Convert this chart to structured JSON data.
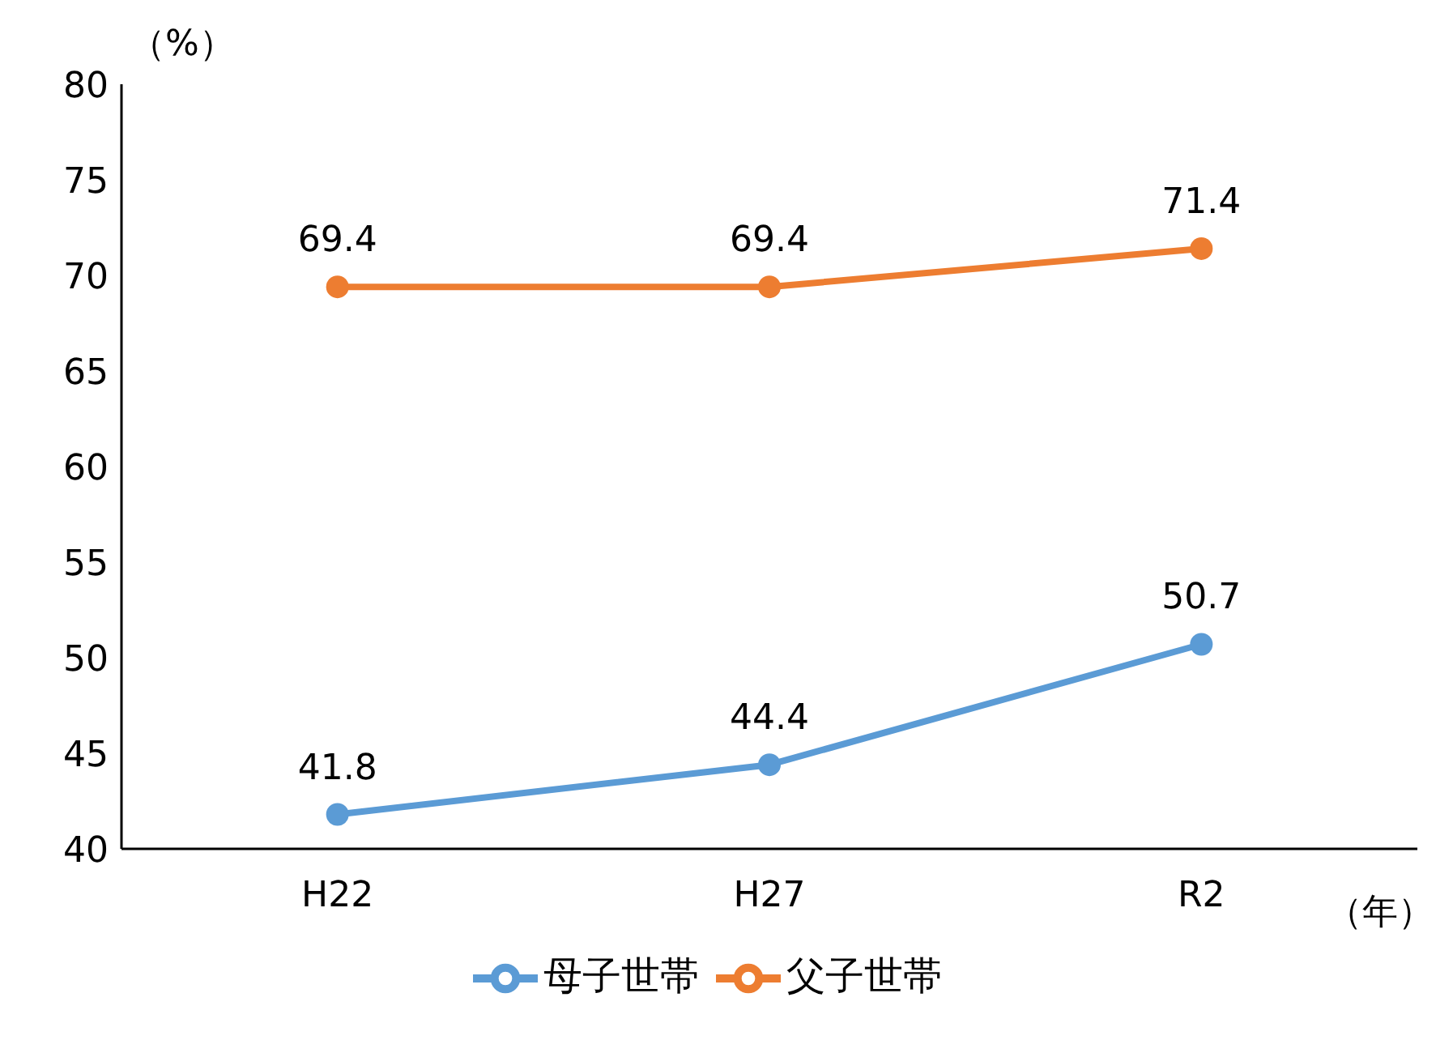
{
  "chart_data": {
    "type": "line",
    "ylabel": "（%）",
    "xlabel": "（年）",
    "categories": [
      "H22",
      "H27",
      "R2"
    ],
    "series": [
      {
        "name": "母子世帯",
        "color": "#5b9bd5",
        "values": [
          41.8,
          44.4,
          50.7
        ]
      },
      {
        "name": "父子世帯",
        "color": "#ed7d31",
        "values": [
          69.4,
          69.4,
          71.4
        ]
      }
    ],
    "ylim": [
      40,
      80
    ],
    "yticks": [
      40,
      45,
      50,
      55,
      60,
      65,
      70,
      75,
      80
    ],
    "grid": false,
    "legend": "bottom",
    "marker": "circle",
    "line_style": "solid",
    "data_labels": true
  }
}
